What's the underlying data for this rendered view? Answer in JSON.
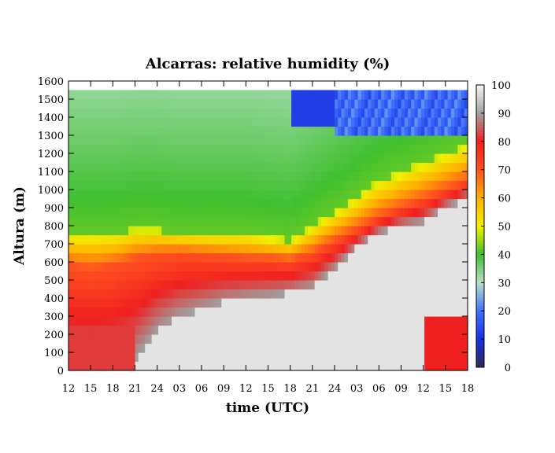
{
  "chart_data": {
    "type": "heatmap",
    "title": "Alcarras: relative humidity (%)",
    "xlabel": "time (UTC)",
    "ylabel": "Altura (m)",
    "x_tick_labels": [
      "12",
      "15",
      "18",
      "21",
      "24",
      "03",
      "06",
      "09",
      "12",
      "15",
      "18",
      "21",
      "24",
      "03",
      "06",
      "09",
      "12",
      "15",
      "18"
    ],
    "y_ticks": [
      0,
      100,
      200,
      300,
      400,
      500,
      600,
      700,
      800,
      900,
      1000,
      1100,
      1200,
      1300,
      1400,
      1500,
      1600
    ],
    "ylim": [
      0,
      1600
    ],
    "data_top_m": 1550,
    "colorbar": {
      "ticks": [
        0,
        10,
        20,
        30,
        40,
        50,
        60,
        70,
        80,
        90,
        100
      ],
      "range": [
        0,
        100
      ]
    },
    "colors": {
      "0": "#2a2a55",
      "10": "#1830e0",
      "20": "#4070ff",
      "30": "#b8e0c8",
      "40": "#40c030",
      "50": "#f0f000",
      "60": "#ffb000",
      "70": "#ff5020",
      "80": "#f02020",
      "90": "#a0a0a0",
      "100": "#f4f4f4"
    },
    "boundary_layer": {
      "description_times_h": [
        0,
        3,
        6,
        9,
        12,
        15,
        18,
        21,
        24,
        27,
        30,
        33,
        36,
        39,
        42,
        45,
        48,
        51,
        54
      ],
      "saturated_top_m": [
        0,
        0,
        0,
        60,
        220,
        300,
        340,
        380,
        400,
        410,
        430,
        460,
        560,
        680,
        760,
        800,
        820,
        900,
        950
      ],
      "rh70_top_m": [
        580,
        560,
        580,
        620,
        640,
        650,
        640,
        630,
        620,
        620,
        610,
        650,
        720,
        780,
        850,
        900,
        950,
        1000,
        1050
      ],
      "rh50_top_m": [
        760,
        760,
        760,
        780,
        780,
        760,
        760,
        760,
        760,
        740,
        720,
        800,
        880,
        960,
        1050,
        1100,
        1150,
        1200,
        1250
      ]
    }
  }
}
